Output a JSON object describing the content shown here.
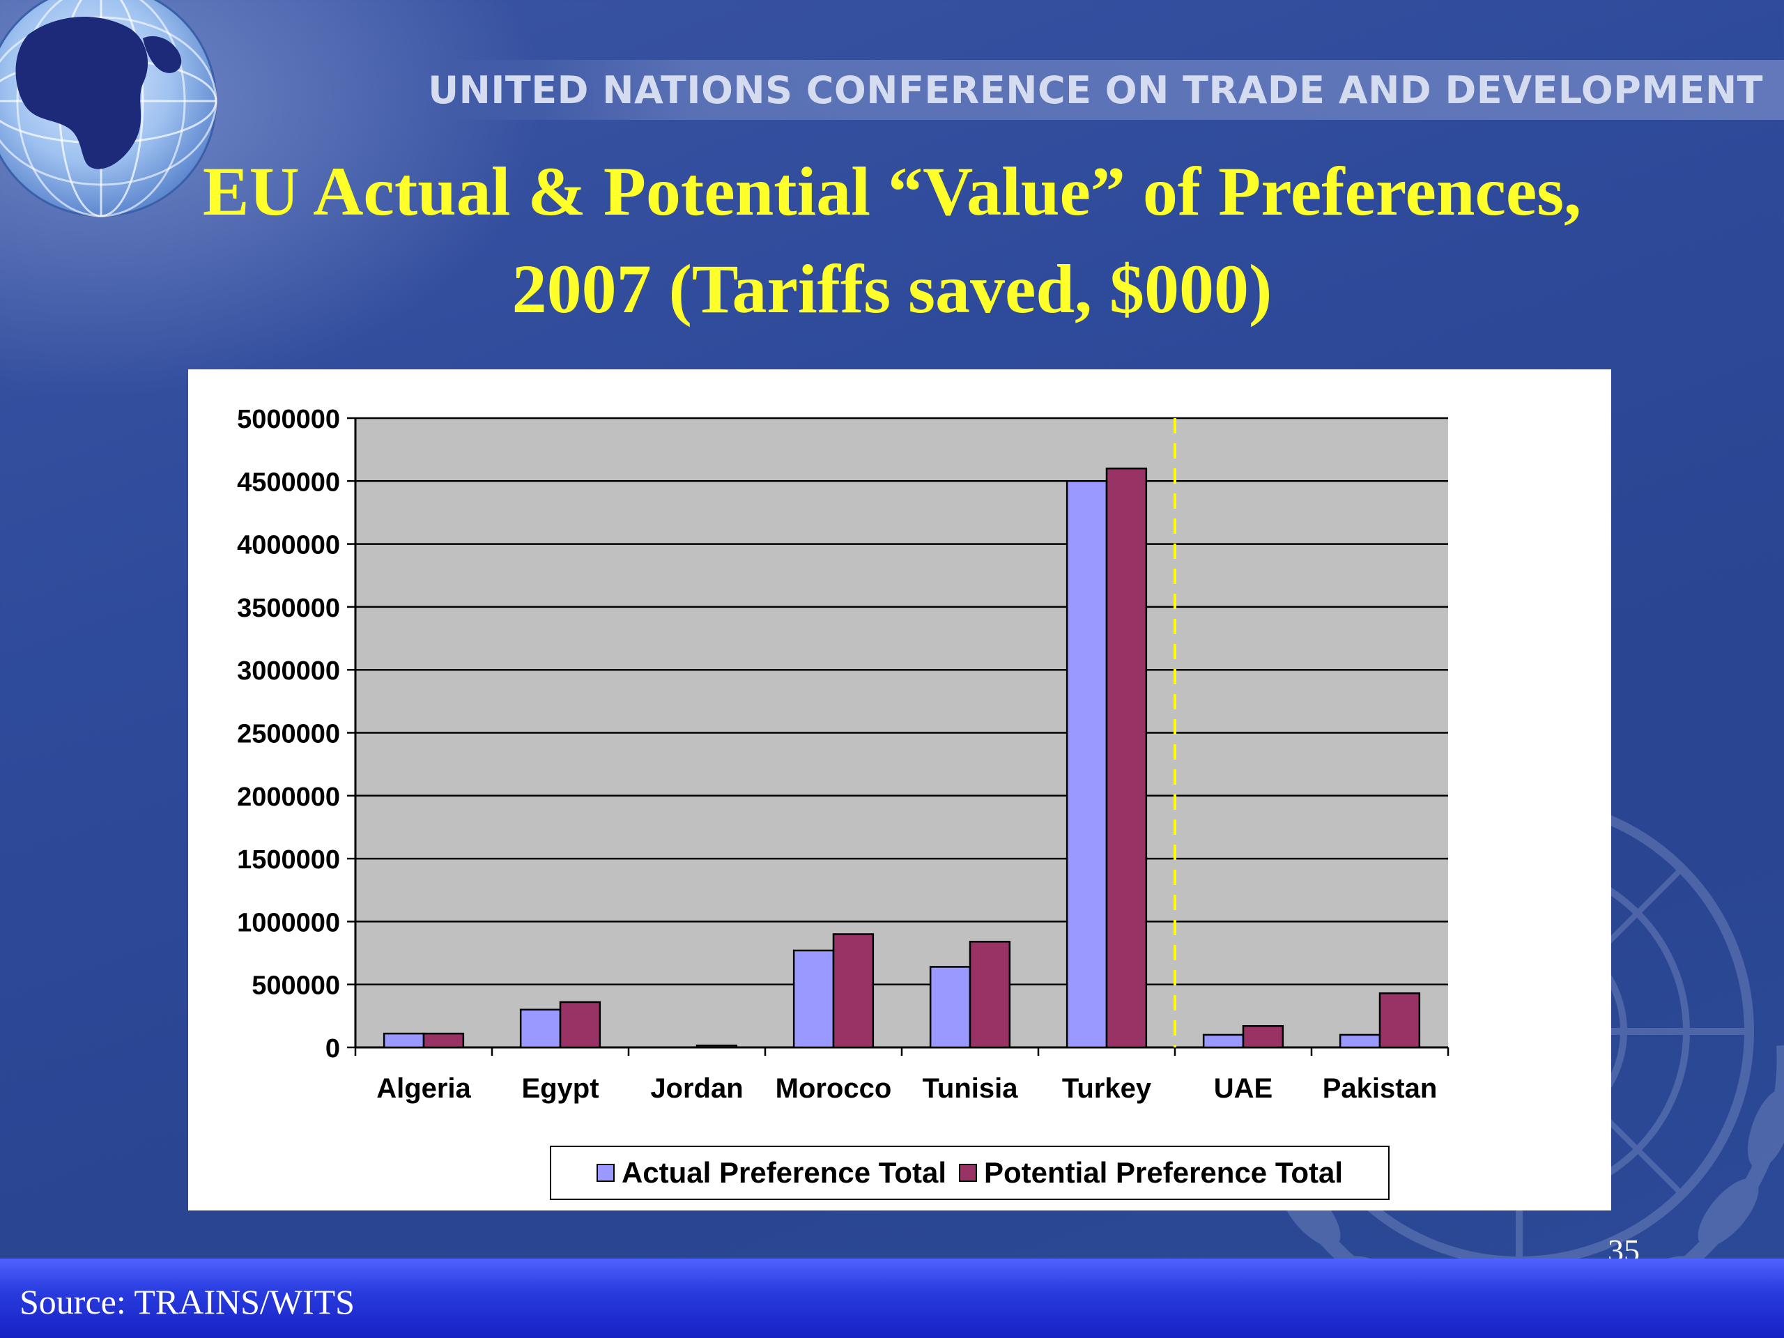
{
  "header": {
    "organization": "UNITED NATIONS CONFERENCE ON TRADE AND DEVELOPMENT"
  },
  "slide": {
    "title_line1": "EU Actual & Potential “Value” of  Preferences,",
    "title_line2": "2007 (Tariffs saved, $000)",
    "page_number": "35",
    "source": "Source: TRAINS/WITS"
  },
  "colors": {
    "actual": "#9999ff",
    "potential": "#993366",
    "plot_bg": "#c0c0c0",
    "divider": "#ffff00",
    "title": "#ffff2a"
  },
  "chart_data": {
    "type": "bar",
    "title": "",
    "xlabel": "",
    "ylabel": "",
    "ylim": [
      0,
      5000000
    ],
    "yticks": [
      "0",
      "500000",
      "1000000",
      "1500000",
      "2000000",
      "2500000",
      "3000000",
      "3500000",
      "4000000",
      "4500000",
      "5000000"
    ],
    "categories": [
      "Algeria",
      "Egypt",
      "Jordan",
      "Morocco",
      "Tunisia",
      "Turkey",
      "UAE",
      "Pakistan"
    ],
    "series": [
      {
        "name": "Actual Preference Total",
        "values": [
          110000,
          300000,
          0,
          770000,
          640000,
          4500000,
          100000,
          100000
        ]
      },
      {
        "name": "Potential Preference Total",
        "values": [
          110000,
          360000,
          15000,
          900000,
          840000,
          4600000,
          170000,
          430000
        ]
      }
    ],
    "divider_after_category": "Turkey",
    "grid": true,
    "legend_position": "bottom"
  }
}
